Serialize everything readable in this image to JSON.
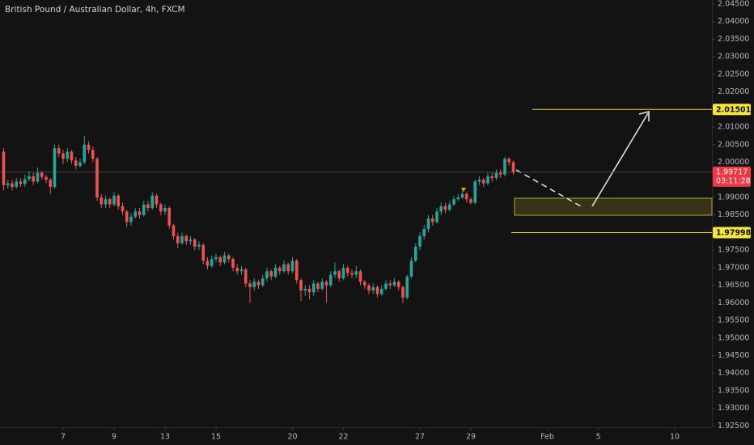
{
  "chart_data": {
    "type": "candlestick",
    "title": "British Pound / Australian Dollar, 4h, FXCM",
    "up_color": "#26a69a",
    "down_color": "#ef5350",
    "level_color": "#e6d63a",
    "price_color": "#f23645",
    "ylim": [
      1.925,
      2.045
    ],
    "yticks": [
      {
        "value": 1.925,
        "label": "1.92500"
      },
      {
        "value": 1.93,
        "label": "1.93000"
      },
      {
        "value": 1.935,
        "label": "1.93500"
      },
      {
        "value": 1.94,
        "label": "1.94000"
      },
      {
        "value": 1.945,
        "label": "1.94500"
      },
      {
        "value": 1.95,
        "label": "1.95000"
      },
      {
        "value": 1.955,
        "label": "1.95500"
      },
      {
        "value": 1.96,
        "label": "1.96000"
      },
      {
        "value": 1.965,
        "label": "1.96500"
      },
      {
        "value": 1.97,
        "label": "1.97000"
      },
      {
        "value": 1.975,
        "label": "1.97500"
      },
      {
        "value": 1.985,
        "label": "1.98500"
      },
      {
        "value": 1.99,
        "label": "1.99000"
      },
      {
        "value": 2.0,
        "label": "2.00000"
      },
      {
        "value": 2.005,
        "label": "2.00500"
      },
      {
        "value": 2.01,
        "label": "2.01000"
      },
      {
        "value": 2.02,
        "label": "2.02000"
      },
      {
        "value": 2.025,
        "label": "2.02500"
      },
      {
        "value": 2.03,
        "label": "2.03000"
      },
      {
        "value": 2.035,
        "label": "2.03500"
      },
      {
        "value": 2.04,
        "label": "2.04000"
      },
      {
        "value": 2.045,
        "label": "2.04500"
      }
    ],
    "xticks": [
      {
        "value": 14,
        "label": "7"
      },
      {
        "value": 26,
        "label": "9"
      },
      {
        "value": 38,
        "label": "13"
      },
      {
        "value": 50,
        "label": "15"
      },
      {
        "value": 68,
        "label": "20"
      },
      {
        "value": 80,
        "label": "22"
      },
      {
        "value": 98,
        "label": "27"
      },
      {
        "value": 110,
        "label": "29"
      },
      {
        "value": 128,
        "label": "Feb"
      },
      {
        "value": 140,
        "label": "5"
      },
      {
        "value": 158,
        "label": "10"
      }
    ],
    "levels": [
      2.01501,
      1.97998
    ],
    "last_price": 1.99717,
    "countdown": "03:11:28",
    "open": [
      2.003,
      1.9935,
      1.994,
      1.993,
      1.9945,
      1.9938,
      1.9952,
      1.996,
      1.9945,
      1.997,
      1.9958,
      1.995,
      1.993,
      2.004,
      2.0025,
      2.001,
      2.003,
      2.0005,
      1.999,
      2.0,
      2.005,
      2.0035,
      2.001,
      1.99,
      1.988,
      1.9895,
      1.988,
      1.9905,
      1.9875,
      1.986,
      1.983,
      1.9845,
      1.986,
      1.985,
      1.988,
      1.987,
      1.9905,
      1.988,
      1.986,
      1.987,
      1.982,
      1.979,
      1.977,
      1.979,
      1.9775,
      1.978,
      1.976,
      1.9765,
      1.972,
      1.9705,
      1.9725,
      1.973,
      1.9715,
      1.9735,
      1.9725,
      1.97,
      1.969,
      1.9695,
      1.9655,
      1.9645,
      1.966,
      1.965,
      1.967,
      1.969,
      1.9675,
      1.97,
      1.969,
      1.971,
      1.969,
      1.972,
      1.9665,
      1.9635,
      1.964,
      1.963,
      1.9655,
      1.964,
      1.966,
      1.965,
      1.968,
      1.969,
      1.967,
      1.97,
      1.9685,
      1.968,
      1.969,
      1.966,
      1.965,
      1.9635,
      1.9645,
      1.9625,
      1.964,
      1.9655,
      1.965,
      1.966,
      1.9645,
      1.9615,
      1.9675,
      1.972,
      1.976,
      1.979,
      1.981,
      1.984,
      1.983,
      1.986,
      1.9875,
      1.9865,
      1.988,
      1.9895,
      1.99,
      1.991,
      1.9895,
      1.9885,
      1.9945,
      1.995,
      1.994,
      1.996,
      1.9955,
      1.997,
      1.9965,
      2.001,
      2.0
    ],
    "high": [
      2.004,
      1.995,
      1.995,
      1.9955,
      1.9955,
      1.9965,
      1.9975,
      1.997,
      1.9985,
      1.9975,
      1.9965,
      1.9955,
      2.005,
      2.005,
      2.0035,
      2.004,
      2.0035,
      2.0015,
      2.001,
      2.0075,
      2.006,
      2.0045,
      2.0015,
      1.991,
      1.9905,
      1.99,
      1.9915,
      1.991,
      1.9885,
      1.9865,
      1.9855,
      1.987,
      1.987,
      1.989,
      1.989,
      1.9915,
      1.991,
      1.9885,
      1.988,
      1.9875,
      1.9825,
      1.98,
      1.98,
      1.9795,
      1.979,
      1.9785,
      1.9775,
      1.977,
      1.973,
      1.9735,
      1.974,
      1.9735,
      1.9745,
      1.974,
      1.973,
      1.971,
      1.9705,
      1.97,
      1.9665,
      1.967,
      1.9665,
      1.968,
      1.97,
      1.9695,
      1.971,
      1.9705,
      1.972,
      1.9715,
      1.973,
      1.9725,
      1.967,
      1.965,
      1.965,
      1.9665,
      1.966,
      1.967,
      1.9665,
      1.969,
      1.9715,
      1.9695,
      1.971,
      1.9705,
      1.9695,
      1.9705,
      1.9695,
      1.9665,
      1.9655,
      1.9655,
      1.965,
      1.965,
      1.9665,
      1.9665,
      1.967,
      1.9665,
      1.965,
      1.968,
      1.973,
      1.977,
      1.98,
      1.982,
      1.985,
      1.985,
      1.987,
      1.9885,
      1.9885,
      1.989,
      1.9905,
      1.991,
      1.992,
      1.9915,
      1.99,
      1.995,
      1.996,
      1.9955,
      1.997,
      1.997,
      1.998,
      1.998,
      2.0015,
      2.0015,
      2.0005
    ],
    "low": [
      1.992,
      1.9925,
      1.992,
      1.9925,
      1.993,
      1.993,
      1.9945,
      1.9935,
      1.994,
      1.995,
      1.994,
      1.991,
      1.9925,
      2.0015,
      1.9995,
      2.0,
      1.9995,
      1.998,
      1.9985,
      1.9995,
      2.0025,
      2.0,
      1.989,
      1.987,
      1.987,
      1.987,
      1.9875,
      1.9865,
      1.985,
      1.9815,
      1.982,
      1.984,
      1.984,
      1.9845,
      1.986,
      1.9865,
      1.987,
      1.985,
      1.985,
      1.981,
      1.978,
      1.9755,
      1.9765,
      1.9765,
      1.9765,
      1.975,
      1.975,
      1.971,
      1.9695,
      1.97,
      1.9715,
      1.9705,
      1.971,
      1.9715,
      1.969,
      1.968,
      1.968,
      1.9645,
      1.96,
      1.9635,
      1.964,
      1.9645,
      1.966,
      1.9665,
      1.967,
      1.968,
      1.9685,
      1.968,
      1.9685,
      1.9655,
      1.9605,
      1.962,
      1.961,
      1.962,
      1.963,
      1.9635,
      1.96,
      1.9645,
      1.967,
      1.966,
      1.9665,
      1.9675,
      1.967,
      1.967,
      1.965,
      1.964,
      1.9625,
      1.9625,
      1.9615,
      1.962,
      1.9635,
      1.964,
      1.9645,
      1.9635,
      1.96,
      1.961,
      1.967,
      1.9715,
      1.975,
      1.978,
      1.98,
      1.982,
      1.9825,
      1.985,
      1.9855,
      1.986,
      1.9875,
      1.989,
      1.9895,
      1.9885,
      1.988,
      1.988,
      1.9935,
      1.993,
      1.9935,
      1.9945,
      1.995,
      1.9955,
      1.996,
      1.999,
      1.9965
    ],
    "close": [
      1.9935,
      1.994,
      1.993,
      1.9945,
      1.9938,
      1.9952,
      1.996,
      1.9945,
      1.997,
      1.9958,
      1.995,
      1.993,
      2.004,
      2.0025,
      2.001,
      2.003,
      2.0005,
      1.999,
      2.0,
      2.005,
      2.0035,
      2.001,
      1.99,
      1.988,
      1.9895,
      1.988,
      1.9905,
      1.9875,
      1.986,
      1.983,
      1.9845,
      1.986,
      1.985,
      1.988,
      1.987,
      1.9905,
      1.988,
      1.986,
      1.987,
      1.982,
      1.979,
      1.977,
      1.979,
      1.9775,
      1.978,
      1.976,
      1.9765,
      1.972,
      1.9705,
      1.9725,
      1.973,
      1.9715,
      1.9735,
      1.9725,
      1.97,
      1.969,
      1.9695,
      1.9655,
      1.9645,
      1.966,
      1.965,
      1.967,
      1.969,
      1.9675,
      1.97,
      1.969,
      1.971,
      1.969,
      1.972,
      1.9665,
      1.9635,
      1.964,
      1.963,
      1.9655,
      1.964,
      1.966,
      1.965,
      1.968,
      1.969,
      1.967,
      1.97,
      1.9685,
      1.968,
      1.969,
      1.966,
      1.965,
      1.9635,
      1.9645,
      1.9625,
      1.964,
      1.9655,
      1.965,
      1.966,
      1.9645,
      1.9615,
      1.9675,
      1.972,
      1.976,
      1.979,
      1.981,
      1.984,
      1.983,
      1.986,
      1.9875,
      1.9865,
      1.988,
      1.9895,
      1.99,
      1.991,
      1.9895,
      1.9885,
      1.9945,
      1.995,
      1.994,
      1.996,
      1.9955,
      1.997,
      1.9965,
      2.001,
      2.0,
      1.99717
    ]
  }
}
